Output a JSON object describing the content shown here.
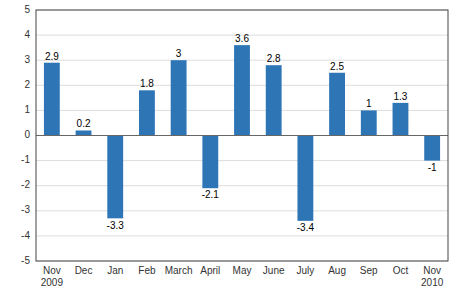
{
  "chart_data": {
    "type": "bar",
    "categories": [
      "Nov\n2009",
      "Dec",
      "Jan",
      "Feb",
      "March",
      "April",
      "May",
      "June",
      "July",
      "Aug",
      "Sep",
      "Oct",
      "Nov\n2010"
    ],
    "values": [
      2.9,
      0.2,
      -3.3,
      1.8,
      3.0,
      -2.1,
      3.6,
      2.8,
      -3.4,
      2.5,
      1.0,
      1.3,
      -1.0
    ],
    "color": "#2E75B6",
    "ylim": [
      -5,
      5
    ],
    "yticks": [
      -5,
      -4,
      -3,
      -2,
      -1,
      0,
      1,
      2,
      3,
      4,
      5
    ],
    "grid": true,
    "data_labels": true
  }
}
